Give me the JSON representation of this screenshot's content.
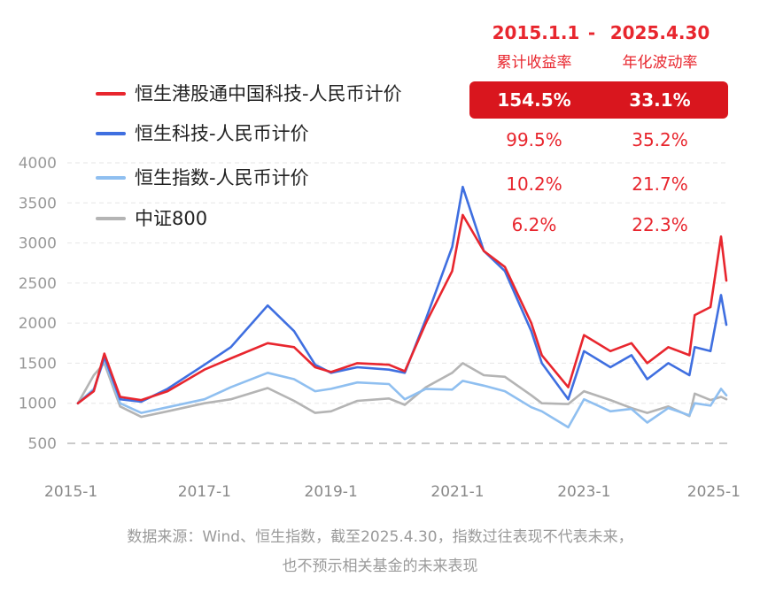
{
  "header": {
    "start": "2015.1.1",
    "dash": "-",
    "end": "2025.4.30",
    "col_return": "累计收益率",
    "col_vol": "年化波动率"
  },
  "note": {
    "line1": "数据来源：Wind、恒生指数，截至2025.4.30，指数过往表现不代表未来，",
    "line2": "也不预示相关基金的未来表现"
  },
  "colors": {
    "hstech_hk": "#e8262e",
    "hstech": "#3f6fe0",
    "hsi": "#8fbff0",
    "csi800": "#b4b4b4",
    "highlight": "#d9161e"
  },
  "chart_data": {
    "type": "line",
    "ylim": [
      500,
      4000
    ],
    "yticks": [
      "4000",
      "3500",
      "3000",
      "2500",
      "2000",
      "1500",
      "1000",
      "500"
    ],
    "xticks": [
      "2015-1",
      "2017-1",
      "2019-1",
      "2021-1",
      "2023-1",
      "2025-1"
    ],
    "reference_line": 500,
    "grid": true,
    "legend_position": "top-left",
    "x": [
      "2015-01",
      "2015-04",
      "2015-06",
      "2015-09",
      "2016-01",
      "2016-06",
      "2017-01",
      "2017-06",
      "2018-01",
      "2018-06",
      "2018-10",
      "2019-01",
      "2019-06",
      "2019-12",
      "2020-03",
      "2020-07",
      "2020-12",
      "2021-02",
      "2021-06",
      "2021-10",
      "2022-03",
      "2022-05",
      "2022-10",
      "2023-01",
      "2023-06",
      "2023-10",
      "2024-01",
      "2024-05",
      "2024-09",
      "2024-10",
      "2025-01",
      "2025-03",
      "2025-04"
    ],
    "series": [
      {
        "name": "恒生港股通中国科技-人民币计价",
        "cum_return": "154.5%",
        "ann_vol": "33.1%",
        "values": [
          1000,
          1150,
          1620,
          1080,
          1040,
          1150,
          1420,
          1560,
          1750,
          1700,
          1450,
          1390,
          1500,
          1480,
          1400,
          2000,
          2650,
          3350,
          2900,
          2700,
          2000,
          1600,
          1200,
          1850,
          1650,
          1750,
          1500,
          1700,
          1600,
          2100,
          2200,
          3080,
          2530
        ]
      },
      {
        "name": "恒生科技-人民币计价",
        "cum_return": "99.5%",
        "ann_vol": "35.2%",
        "values": [
          1000,
          1160,
          1580,
          1050,
          1020,
          1180,
          1480,
          1700,
          2220,
          1900,
          1480,
          1380,
          1450,
          1420,
          1380,
          2050,
          2950,
          3700,
          2900,
          2650,
          1900,
          1500,
          1050,
          1650,
          1450,
          1600,
          1300,
          1500,
          1350,
          1700,
          1650,
          2350,
          1980
        ]
      },
      {
        "name": "恒生指数-人民币计价",
        "cum_return": "10.2%",
        "ann_vol": "21.7%",
        "values": [
          1000,
          1180,
          1550,
          1000,
          880,
          950,
          1050,
          1200,
          1380,
          1300,
          1150,
          1180,
          1260,
          1240,
          1050,
          1180,
          1170,
          1280,
          1220,
          1150,
          950,
          900,
          700,
          1050,
          900,
          930,
          760,
          940,
          850,
          1000,
          970,
          1180,
          1100
        ]
      },
      {
        "name": "中证800",
        "cum_return": "6.2%",
        "ann_vol": "22.3%",
        "values": [
          1000,
          1350,
          1500,
          960,
          830,
          900,
          1000,
          1050,
          1190,
          1030,
          880,
          900,
          1030,
          1060,
          980,
          1200,
          1380,
          1500,
          1350,
          1330,
          1100,
          1000,
          990,
          1150,
          1040,
          940,
          880,
          960,
          840,
          1120,
          1040,
          1080,
          1050
        ]
      }
    ]
  }
}
